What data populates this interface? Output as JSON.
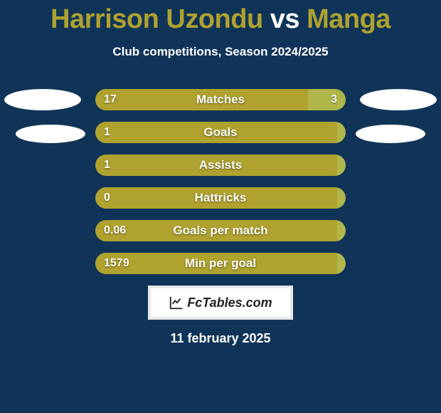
{
  "title": {
    "player1": "Harrison Uzondu",
    "vs": "vs",
    "player2": "Manga",
    "player1_color": "#afa22e",
    "player2_color": "#afa22e"
  },
  "subtitle": "Club competitions, Season 2024/2025",
  "colors": {
    "background": "#103458",
    "left_bar": "#afa22e",
    "right_bar": "#afb74a",
    "text": "#ffffff",
    "ellipse": "#ffffff"
  },
  "bars": [
    {
      "label": "Matches",
      "left": "17",
      "right": "3",
      "left_pct": 85,
      "right_pct": 15
    },
    {
      "label": "Goals",
      "left": "1",
      "right": "",
      "left_pct": 100,
      "right_pct": 0
    },
    {
      "label": "Assists",
      "left": "1",
      "right": "",
      "left_pct": 100,
      "right_pct": 0
    },
    {
      "label": "Hattricks",
      "left": "0",
      "right": "",
      "left_pct": 100,
      "right_pct": 0
    },
    {
      "label": "Goals per match",
      "left": "0.06",
      "right": "",
      "left_pct": 100,
      "right_pct": 0
    },
    {
      "label": "Min per goal",
      "left": "1579",
      "right": "",
      "left_pct": 100,
      "right_pct": 0
    }
  ],
  "badge": {
    "text": "FcTables.com"
  },
  "date": "11 february 2025"
}
